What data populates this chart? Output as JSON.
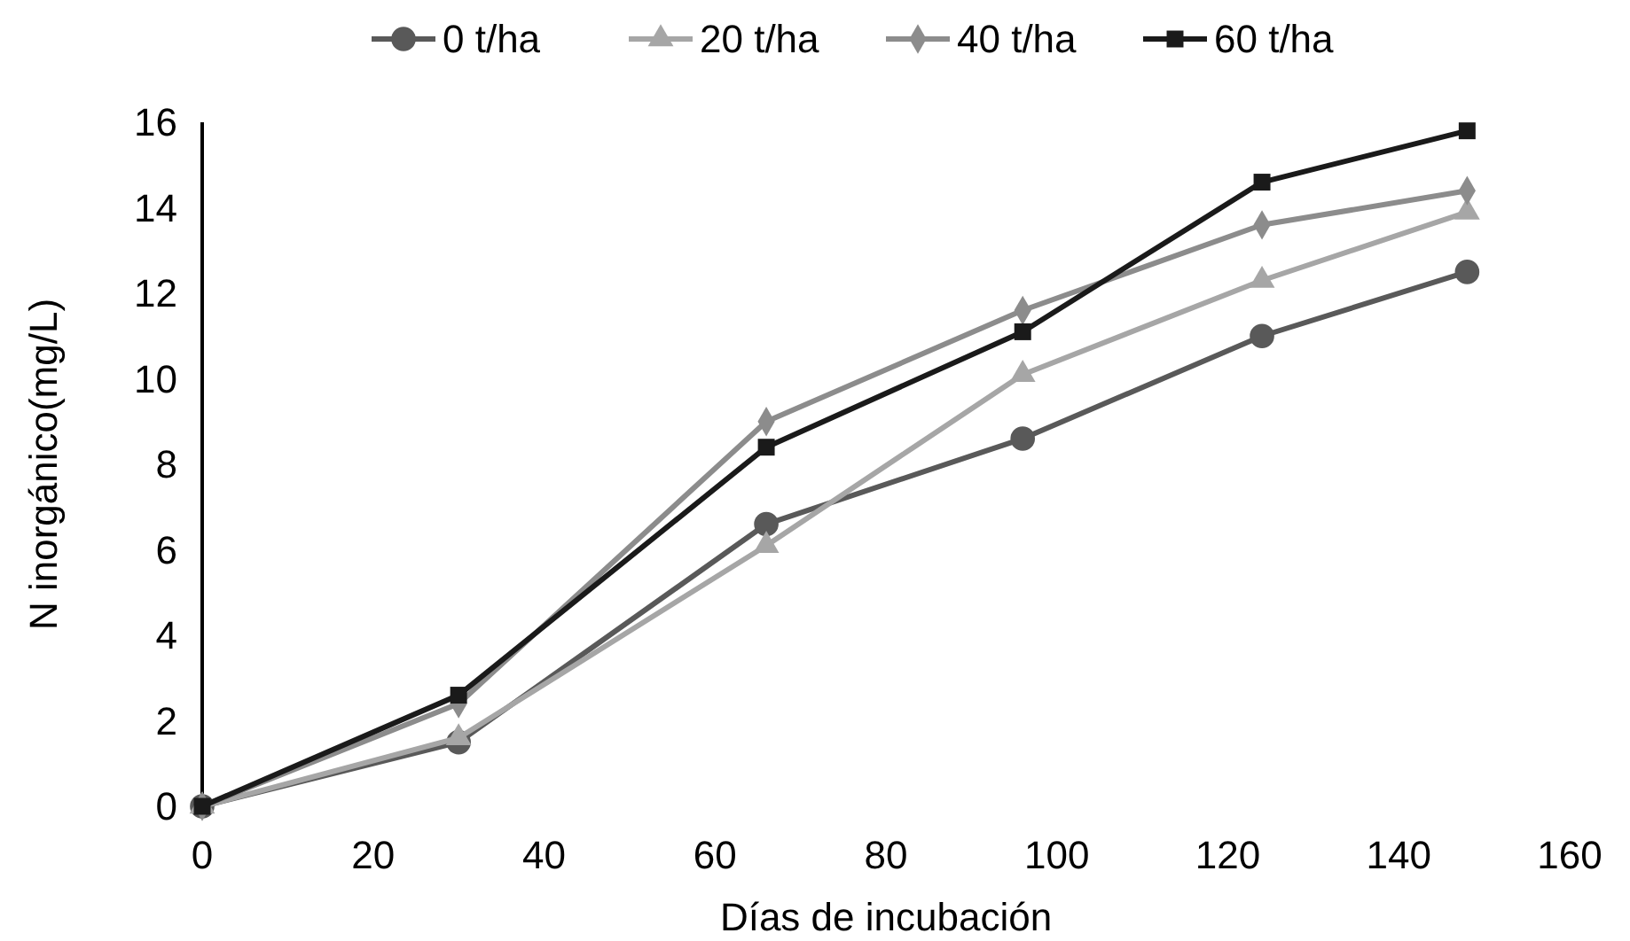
{
  "chart_data": {
    "type": "line",
    "xlabel": "Días de incubación",
    "ylabel": "N inorgánico(mg/L)",
    "x": [
      0,
      30,
      66,
      96,
      124,
      148
    ],
    "series": [
      {
        "name": "0 t/ha",
        "color": "#595959",
        "marker": "circle",
        "values": [
          0,
          1.5,
          6.6,
          8.6,
          11.0,
          12.5
        ]
      },
      {
        "name": "20 t/ha",
        "color": "#a6a6a6",
        "marker": "triangle",
        "values": [
          0,
          1.6,
          6.1,
          10.1,
          12.3,
          13.9
        ]
      },
      {
        "name": "40 t/ha",
        "color": "#8c8c8c",
        "marker": "diamond",
        "values": [
          0,
          2.4,
          9.0,
          11.6,
          13.6,
          14.4
        ]
      },
      {
        "name": "60 t/ha",
        "color": "#1a1a1a",
        "marker": "square",
        "values": [
          0,
          2.6,
          8.4,
          11.1,
          14.6,
          15.8
        ]
      }
    ],
    "xlim": [
      0,
      160
    ],
    "xticks": [
      0,
      20,
      40,
      60,
      80,
      100,
      120,
      140,
      160
    ],
    "ylim": [
      0,
      16
    ],
    "yticks": [
      0,
      2,
      4,
      6,
      8,
      10,
      12,
      14,
      16
    ],
    "grid": false,
    "legend": "top",
    "line_style": "solid"
  }
}
